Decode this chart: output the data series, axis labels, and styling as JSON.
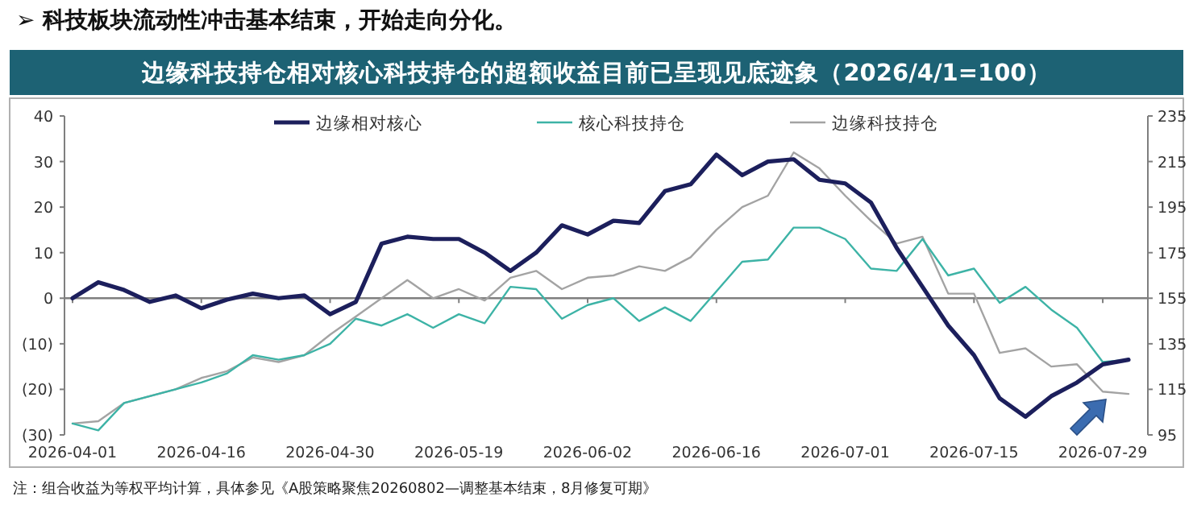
{
  "chart_data": {
    "type": "line",
    "subtitle": "➢  科技板块流动性冲击基本结束，开始走向分化。",
    "title": "边缘科技持仓相对核心科技持仓的超额收益目前已呈现见底迹象（2026/4/1=100）",
    "categories": [
      "2026-04-01",
      null,
      null,
      null,
      null,
      "2026-04-16",
      null,
      null,
      null,
      null,
      "2026-04-30",
      null,
      null,
      null,
      null,
      "2026-05-19",
      null,
      null,
      null,
      null,
      "2026-06-02",
      null,
      null,
      null,
      null,
      "2026-06-16",
      null,
      null,
      null,
      null,
      "2026-07-01",
      null,
      null,
      null,
      null,
      "2026-07-15",
      null,
      null,
      null,
      null,
      "2026-07-29",
      null
    ],
    "series": [
      {
        "name": "边缘相对核心",
        "color": "#1c1f5c",
        "axis": "y",
        "values": [
          0,
          3.5,
          1.8,
          -0.8,
          0.6,
          -2.2,
          -0.3,
          1.0,
          0,
          0.6,
          -3.5,
          -0.8,
          12,
          13.5,
          13,
          13,
          10,
          6,
          10,
          16,
          14,
          17,
          16.5,
          23.5,
          25,
          31.5,
          27,
          30,
          30.5,
          26,
          25.2,
          21,
          11,
          2.5,
          -6,
          -12.5,
          -22,
          -26,
          -21.5,
          -18.5,
          -14.5,
          -13.5
        ]
      },
      {
        "name": "核心科技持仓",
        "color": "#3db3a6",
        "axis": "y2",
        "values": [
          100,
          97,
          109,
          112,
          115,
          118,
          122,
          130,
          128,
          130,
          135,
          146,
          143,
          148,
          142,
          148,
          144,
          160,
          159,
          146,
          152,
          155,
          145,
          151,
          145,
          158,
          171,
          172,
          186,
          186,
          181,
          168,
          167,
          181,
          165,
          168,
          153,
          160,
          150,
          142,
          127,
          128
        ]
      },
      {
        "name": "边缘科技持仓",
        "color": "#a3a3a3",
        "axis": "y2",
        "values": [
          100,
          101,
          109,
          112,
          115,
          120,
          123,
          129,
          127,
          130,
          139,
          147,
          155,
          163,
          155,
          159,
          154,
          164,
          167,
          159,
          164,
          165,
          169,
          167,
          173,
          185,
          195,
          200,
          219,
          212,
          200,
          189,
          179,
          182,
          157,
          157,
          131,
          133,
          125,
          126,
          114,
          113
        ]
      }
    ],
    "ylim": [
      -30,
      40
    ],
    "yticks": [
      {
        "value": -30,
        "label": "(30)"
      },
      {
        "value": -20,
        "label": "(20)"
      },
      {
        "value": -10,
        "label": "(10)"
      },
      0,
      10,
      20,
      30,
      40
    ],
    "y2lim": [
      95,
      235
    ],
    "y2ticks": [
      95,
      115,
      135,
      155,
      175,
      195,
      215,
      235
    ],
    "ref_lines": [
      {
        "axis": "y",
        "value": 0,
        "color": "#7f7f7f"
      }
    ],
    "legend": "top",
    "annotations": [
      "注：组合收益为等权平均计算，具体参见《A股策略聚焦20260802—调整基本结束，8月修复可期》"
    ]
  }
}
